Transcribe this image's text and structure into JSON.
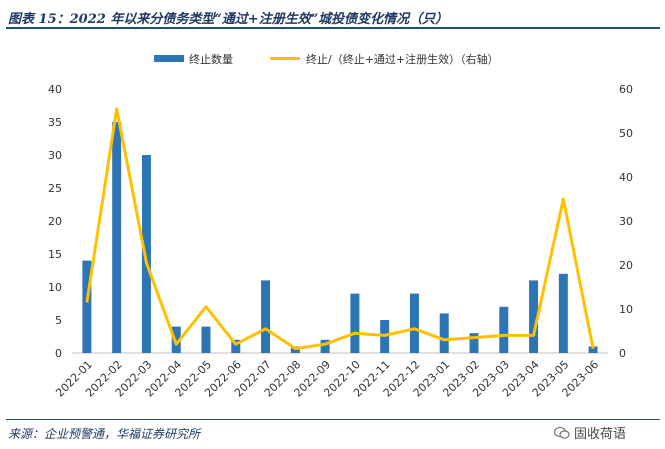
{
  "title": "图表 15：2022 年以来分债务类型“通过+注册生效”城投债变化情况（只）",
  "source": "来源：企业预警通，华福证券研究所",
  "watermark": {
    "text": "固收荷语",
    "icon": "wechat-icon"
  },
  "colors": {
    "bar": "#2e75b6",
    "line": "#ffc000",
    "text": "#1f3864"
  },
  "chart_data": {
    "type": "bar",
    "categories": [
      "2022-01",
      "2022-02",
      "2022-03",
      "2022-04",
      "2022-05",
      "2022-06",
      "2022-07",
      "2022-08",
      "2022-09",
      "2022-10",
      "2022-11",
      "2022-12",
      "2023-01",
      "2023-02",
      "2023-03",
      "2023-04",
      "2023-05",
      "2023-06"
    ],
    "series": [
      {
        "name": "终止数量",
        "type": "bar",
        "axis": "left",
        "values": [
          14,
          35,
          30,
          4,
          4,
          2,
          11,
          1,
          2,
          9,
          5,
          9,
          6,
          3,
          7,
          11,
          12,
          1
        ]
      },
      {
        "name": "终止/（终止+通过+注册生效）（右轴）",
        "type": "line",
        "axis": "right",
        "values": [
          11.5,
          55.5,
          20.5,
          2,
          10.5,
          2,
          5.5,
          1,
          2,
          4.5,
          4,
          5.5,
          3,
          3.5,
          4,
          4,
          35,
          1
        ]
      }
    ],
    "ylim_left": [
      0,
      40
    ],
    "yticks_left": [
      0,
      5,
      10,
      15,
      20,
      25,
      30,
      35,
      40
    ],
    "ylim_right": [
      0,
      60
    ],
    "yticks_right": [
      0,
      10,
      20,
      30,
      40,
      50,
      60
    ],
    "legend_position": "top-center",
    "grid": false
  }
}
